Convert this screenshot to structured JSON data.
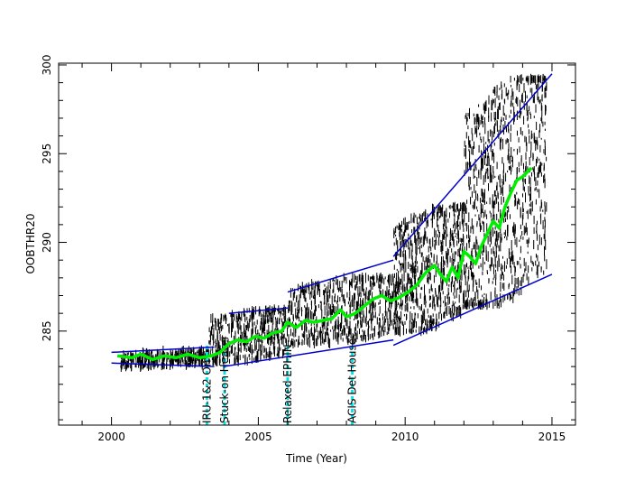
{
  "chart_data": {
    "type": "scatter",
    "xlabel": "Time (Year)",
    "ylabel": "OOBTHR20",
    "xlim": [
      1998.2,
      2015.8
    ],
    "ylim": [
      279.7,
      300.1
    ],
    "xticks": [
      2000,
      2005,
      2010,
      2015
    ],
    "yticks": [
      285,
      290,
      295,
      300
    ],
    "colors": {
      "data": "#000000",
      "trend": "#00ee00",
      "envelope": "#0000cc",
      "events": "#00e5e5"
    },
    "events": [
      {
        "x": 2003.25,
        "label": "IRU-1&2 On"
      },
      {
        "x": 2003.85,
        "label": "Stuck-on Heater"
      },
      {
        "x": 2006.0,
        "label": "Relaxed EPHIN"
      },
      {
        "x": 2008.2,
        "label": "ACIS Det House"
      }
    ],
    "trend": {
      "x": [
        2000.2,
        2000.7,
        2001.0,
        2001.4,
        2001.8,
        2002.2,
        2002.6,
        2003.0,
        2003.4,
        2003.7,
        2004.0,
        2004.3,
        2004.6,
        2004.9,
        2005.2,
        2005.5,
        2005.8,
        2006.0,
        2006.3,
        2006.6,
        2006.9,
        2007.2,
        2007.5,
        2007.8,
        2008.0,
        2008.3,
        2008.6,
        2008.9,
        2009.2,
        2009.5,
        2009.8,
        2010.1,
        2010.4,
        2010.7,
        2011.0,
        2011.2,
        2011.4,
        2011.6,
        2011.8,
        2012.0,
        2012.2,
        2012.4,
        2012.6,
        2012.8,
        2013.0,
        2013.2,
        2013.4,
        2013.6,
        2013.8,
        2014.0,
        2014.3
      ],
      "y": [
        283.6,
        283.5,
        283.7,
        283.4,
        283.6,
        283.5,
        283.7,
        283.5,
        283.6,
        283.8,
        284.3,
        284.5,
        284.4,
        284.7,
        284.6,
        284.9,
        285.0,
        285.5,
        285.2,
        285.6,
        285.5,
        285.6,
        285.7,
        286.2,
        285.8,
        286.0,
        286.4,
        286.8,
        287.0,
        286.7,
        286.9,
        287.2,
        287.6,
        288.3,
        288.7,
        288.2,
        287.8,
        288.6,
        288.0,
        289.5,
        289.2,
        288.8,
        289.8,
        290.5,
        291.2,
        290.8,
        292.0,
        292.8,
        293.5,
        293.7,
        294.2
      ]
    },
    "envelope": [
      {
        "x": [
          2000.0,
          2003.5
        ],
        "y": [
          283.8,
          284.1
        ]
      },
      {
        "x": [
          2000.0,
          2003.5
        ],
        "y": [
          283.2,
          283.0
        ]
      },
      {
        "x": [
          2004.0,
          2006.0
        ],
        "y": [
          286.0,
          286.3
        ]
      },
      {
        "x": [
          2006.0,
          2009.6
        ],
        "y": [
          287.2,
          289.0
        ]
      },
      {
        "x": [
          2003.8,
          2009.6
        ],
        "y": [
          283.0,
          284.5
        ]
      },
      {
        "x": [
          2009.6,
          2015.0
        ],
        "y": [
          289.2,
          299.5
        ]
      },
      {
        "x": [
          2009.6,
          2015.0
        ],
        "y": [
          284.2,
          288.2
        ]
      }
    ],
    "scatter_density": [
      {
        "x0": 2000.3,
        "x1": 2003.3,
        "lo": 283.0,
        "hi": 283.9,
        "n": 320
      },
      {
        "x0": 2003.3,
        "x1": 2006.0,
        "lo": 283.3,
        "hi": 286.2,
        "n": 450
      },
      {
        "x0": 2006.0,
        "x1": 2009.6,
        "lo": 284.3,
        "hi": 288.0,
        "n": 600
      },
      {
        "x0": 2009.6,
        "x1": 2012.0,
        "lo": 285.0,
        "hi": 292.0,
        "n": 700
      },
      {
        "x0": 2012.0,
        "x1": 2014.8,
        "lo": 286.5,
        "hi": 299.2,
        "n": 900
      }
    ]
  }
}
